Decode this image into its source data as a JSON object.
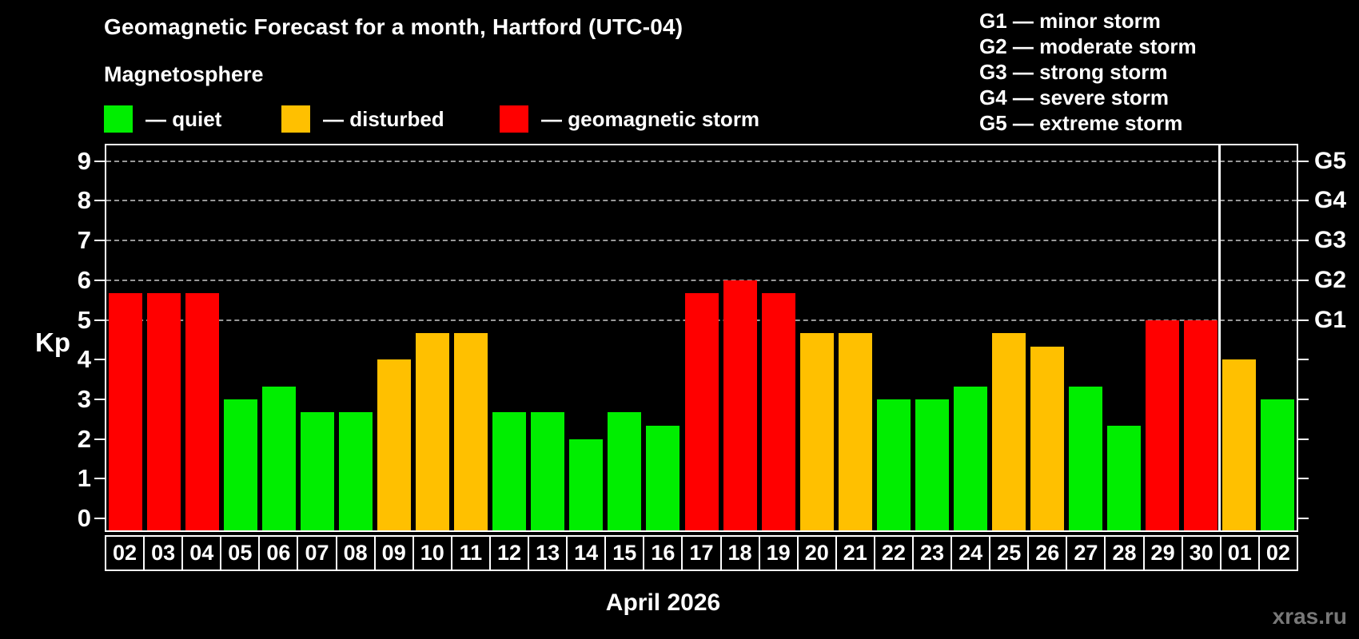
{
  "title": "Geomagnetic Forecast for a month, Hartford (UTC-04)",
  "subtitle": "Magnetosphere",
  "legend": [
    {
      "label": "— quiet",
      "status": "quiet"
    },
    {
      "label": "— disturbed",
      "status": "disturbed"
    },
    {
      "label": "— geomagnetic storm",
      "status": "storm"
    }
  ],
  "g_scale_legend": [
    "G1 — minor storm",
    "G2 — moderate storm",
    "G3 — strong storm",
    "G4 — severe storm",
    "G5 — extreme storm"
  ],
  "colors": {
    "quiet": "#00ee00",
    "disturbed": "#ffc000",
    "storm": "#ff0000",
    "grid": "#999999",
    "axis": "#ffffff",
    "background": "#000000",
    "watermark": "#787878"
  },
  "y_axis": {
    "label": "Kp",
    "ticks": [
      "0",
      "1",
      "2",
      "3",
      "4",
      "5",
      "6",
      "7",
      "8",
      "9"
    ]
  },
  "right_axis": {
    "labels": [
      "G1",
      "G2",
      "G3",
      "G4",
      "G5"
    ],
    "kp_start": 5
  },
  "x_axis_title": "April 2026",
  "watermark": "xras.ru",
  "chart_data": {
    "type": "bar",
    "title": "Geomagnetic Forecast for a month, Hartford (UTC-04)",
    "xlabel": "April 2026",
    "ylabel": "Kp",
    "ylim": [
      0,
      9
    ],
    "grid_levels_kp": [
      5,
      6,
      7,
      8,
      9
    ],
    "legend_position": "top-left",
    "categories": [
      "02",
      "03",
      "04",
      "05",
      "06",
      "07",
      "08",
      "09",
      "10",
      "11",
      "12",
      "13",
      "14",
      "15",
      "16",
      "17",
      "18",
      "19",
      "20",
      "21",
      "22",
      "23",
      "24",
      "25",
      "26",
      "27",
      "28",
      "29",
      "30",
      "01",
      "02"
    ],
    "values": [
      5.67,
      5.67,
      5.67,
      3,
      3.33,
      2.67,
      2.67,
      4,
      4.67,
      4.67,
      2.67,
      2.67,
      2,
      2.67,
      2.33,
      5.67,
      6,
      5.67,
      4.67,
      4.67,
      3,
      3,
      3.33,
      4.67,
      4.33,
      3.33,
      2.33,
      5,
      5,
      4,
      3
    ],
    "statuses": [
      "storm",
      "storm",
      "storm",
      "quiet",
      "quiet",
      "quiet",
      "quiet",
      "disturbed",
      "disturbed",
      "disturbed",
      "quiet",
      "quiet",
      "quiet",
      "quiet",
      "quiet",
      "storm",
      "storm",
      "storm",
      "disturbed",
      "disturbed",
      "quiet",
      "quiet",
      "quiet",
      "disturbed",
      "disturbed",
      "quiet",
      "quiet",
      "storm",
      "storm",
      "disturbed",
      "quiet"
    ],
    "month_boundary_after_index": 28
  }
}
